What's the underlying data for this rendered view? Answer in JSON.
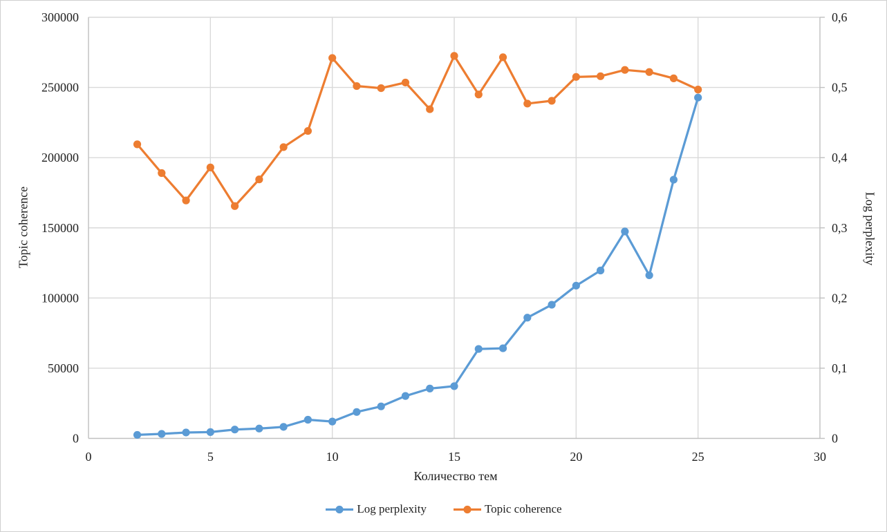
{
  "chart_data": {
    "type": "line",
    "title": "",
    "xlabel": "Количество тем",
    "ylabel_left": "Topic coherence",
    "ylabel_right": "Log perplexity",
    "grid": true,
    "legend_position": "bottom",
    "x_axis": {
      "min": 0,
      "max": 30,
      "tick_values": [
        0,
        5,
        10,
        15,
        20,
        25,
        30
      ],
      "tick_labels": [
        "0",
        "5",
        "10",
        "15",
        "20",
        "25",
        "30"
      ]
    },
    "y_axis_left": {
      "min": 0,
      "max": 300000,
      "tick_values": [
        0,
        50000,
        100000,
        150000,
        200000,
        250000,
        300000
      ],
      "tick_labels": [
        "0",
        "50000",
        "100000",
        "150000",
        "200000",
        "250000",
        "300000"
      ]
    },
    "y_axis_right": {
      "min": 0,
      "max": 0.6,
      "tick_values": [
        0,
        0.1,
        0.2,
        0.3,
        0.4,
        0.5,
        0.6
      ],
      "tick_labels": [
        "0",
        "0,1",
        "0,2",
        "0,3",
        "0,4",
        "0,5",
        "0,6"
      ]
    },
    "x": [
      2,
      3,
      4,
      5,
      6,
      7,
      8,
      9,
      10,
      11,
      12,
      13,
      14,
      15,
      16,
      17,
      18,
      19,
      20,
      21,
      22,
      23,
      24,
      25
    ],
    "series": [
      {
        "name": "Log perplexity",
        "axis": "left",
        "color": "#5B9BD5",
        "values": [
          2500,
          3200,
          4200,
          4500,
          6300,
          7000,
          8200,
          13300,
          12000,
          18800,
          22800,
          30200,
          35500,
          37200,
          63700,
          64200,
          86000,
          95200,
          108800,
          119600,
          147400,
          116200,
          184300,
          242800
        ]
      },
      {
        "name": "Topic coherence",
        "axis": "right",
        "color": "#ED7D31",
        "values": [
          0.419,
          0.378,
          0.339,
          0.386,
          0.331,
          0.369,
          0.415,
          0.438,
          0.542,
          0.502,
          0.499,
          0.507,
          0.469,
          0.545,
          0.49,
          0.543,
          0.477,
          0.481,
          0.515,
          0.516,
          0.525,
          0.522,
          0.513,
          0.497
        ]
      }
    ],
    "colors": {
      "gridline": "#D9D9D9",
      "axis_line": "#BFBFBF",
      "text": "#1f1f1f"
    }
  }
}
